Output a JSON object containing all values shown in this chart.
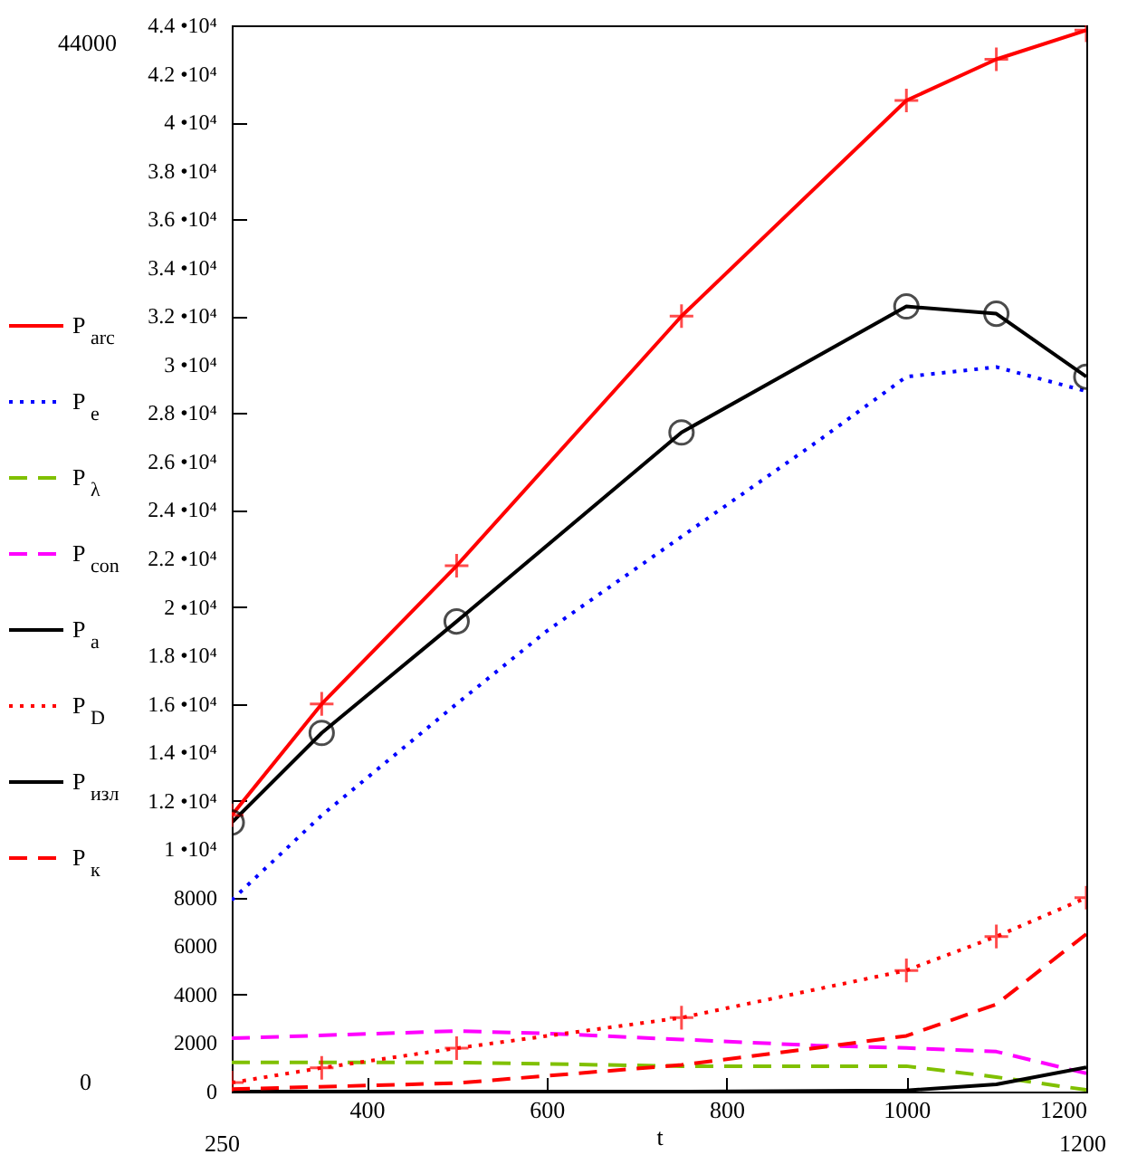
{
  "chart_data": {
    "type": "line",
    "xlabel": "t",
    "xlim": [
      250,
      1200
    ],
    "ylim": [
      0,
      44000
    ],
    "xticks": [
      400,
      600,
      800,
      1000,
      1200
    ],
    "yticks": [
      0,
      2000,
      4000,
      6000,
      8000,
      {
        "value": 10000,
        "label": "1 •10⁴"
      },
      {
        "value": 12000,
        "label": "1.2 •10⁴"
      },
      {
        "value": 14000,
        "label": "1.4 •10⁴"
      },
      {
        "value": 16000,
        "label": "1.6 •10⁴"
      },
      {
        "value": 18000,
        "label": "1.8 •10⁴"
      },
      {
        "value": 20000,
        "label": "2 •10⁴"
      },
      {
        "value": 22000,
        "label": "2.2 •10⁴"
      },
      {
        "value": 24000,
        "label": "2.4 •10⁴"
      },
      {
        "value": 26000,
        "label": "2.6 •10⁴"
      },
      {
        "value": 28000,
        "label": "2.8 •10⁴"
      },
      {
        "value": 30000,
        "label": "3 •10⁴"
      },
      {
        "value": 32000,
        "label": "3.2 •10⁴"
      },
      {
        "value": 34000,
        "label": "3.4 •10⁴"
      },
      {
        "value": 36000,
        "label": "3.6 •10⁴"
      },
      {
        "value": 38000,
        "label": "3.8 •10⁴"
      },
      {
        "value": 40000,
        "label": "4 •10⁴"
      },
      {
        "value": 42000,
        "label": "4.2 •10⁴"
      },
      {
        "value": 44000,
        "label": "4.4 •10⁴"
      }
    ],
    "legend": "left",
    "annotations": [
      "44000",
      "0",
      "250",
      "1200"
    ],
    "series": [
      {
        "name": "P$_{arc}$",
        "color": "#ff0000",
        "line_style": "solid",
        "marker": "cross",
        "x": [
          250,
          350,
          500,
          750,
          1000,
          1100,
          1200
        ],
        "values": [
          11400,
          16000,
          21700,
          32000,
          40900,
          42600,
          43800
        ]
      },
      {
        "name": "P$_{e}$",
        "color": "#0000ff",
        "line_style": "dotted",
        "marker": "none",
        "x": [
          250,
          350,
          500,
          600,
          750,
          900,
          1000,
          1100,
          1200
        ],
        "values": [
          7900,
          11400,
          16000,
          19000,
          22900,
          26800,
          29500,
          29900,
          28900
        ]
      },
      {
        "name": "P$_{λ}$",
        "color": "#80c000",
        "line_style": "dashed",
        "marker": "none",
        "x": [
          250,
          500,
          750,
          1000,
          1100,
          1200
        ],
        "values": [
          1200,
          1200,
          1050,
          1050,
          600,
          70
        ]
      },
      {
        "name": "P$_{con}$",
        "color": "#ff00ff",
        "line_style": "dashed",
        "marker": "none",
        "x": [
          250,
          500,
          600,
          750,
          900,
          1000,
          1100,
          1200
        ],
        "values": [
          2200,
          2500,
          2400,
          2150,
          1900,
          1800,
          1650,
          750
        ]
      },
      {
        "name": "P$_{a}$",
        "color": "#000000",
        "line_style": "solid",
        "marker": "circle",
        "x": [
          250,
          350,
          500,
          750,
          1000,
          1100,
          1200
        ],
        "values": [
          11100,
          14800,
          19400,
          27200,
          32400,
          32100,
          29500
        ]
      },
      {
        "name": "P$_{D}$",
        "color": "#ff0000",
        "line_style": "dotted",
        "marker": "cross",
        "x": [
          250,
          350,
          500,
          750,
          1000,
          1100,
          1200
        ],
        "values": [
          370,
          980,
          1790,
          3050,
          5000,
          6400,
          8000
        ]
      },
      {
        "name": "P$_{изл}$",
        "color": "#000000",
        "line_style": "solid",
        "marker": "none",
        "x": [
          250,
          750,
          1000,
          1100,
          1200
        ],
        "values": [
          0,
          0,
          50,
          300,
          1000
        ]
      },
      {
        "name": "P$_{к}$",
        "color": "#ff0000",
        "line_style": "dashed",
        "marker": "none",
        "x": [
          250,
          500,
          600,
          750,
          900,
          1000,
          1100,
          1200
        ],
        "values": [
          100,
          350,
          650,
          1100,
          1800,
          2300,
          3600,
          6500
        ]
      }
    ]
  }
}
